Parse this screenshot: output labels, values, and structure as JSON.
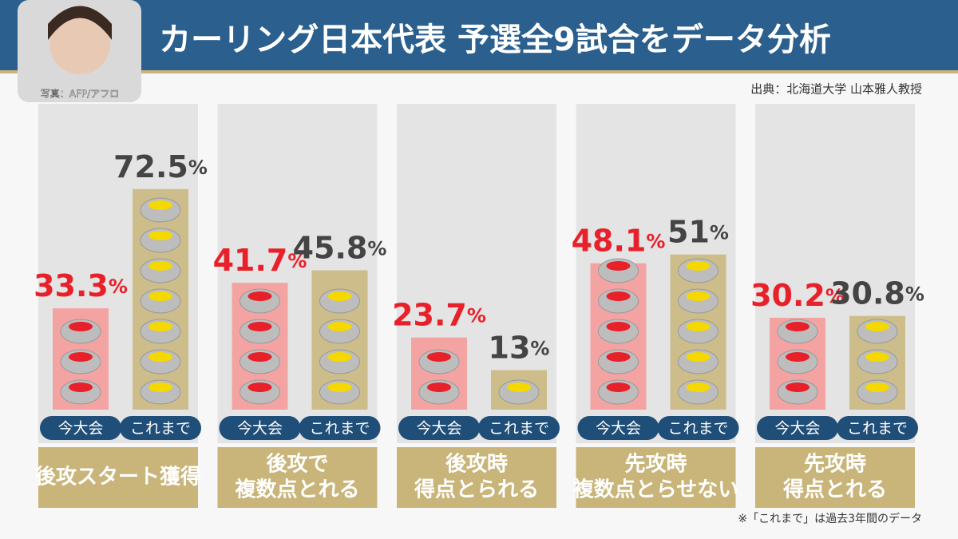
{
  "chart_data": {
    "type": "bar",
    "title": "カーリング日本代表 予選全9試合をデータ分析",
    "source": "出典：北海道大学 山本雅人教授",
    "photo_credit": "写真：AFP/アフロ",
    "note": "※「これまで」は過去3年間のデータ",
    "categories": [
      [
        "後攻スタート獲得"
      ],
      [
        "後攻で",
        "複数点とれる"
      ],
      [
        "後攻時",
        "得点とられる"
      ],
      [
        "先攻時",
        "複数点とらせない"
      ],
      [
        "先攻時",
        "得点とれる"
      ]
    ],
    "series": [
      {
        "name": "今大会",
        "color": "#f4a3a3",
        "label_color": "#e8202a",
        "stone_color": "#e8202a",
        "values": [
          33.3,
          41.7,
          23.7,
          48.1,
          30.2
        ],
        "value_labels": [
          "33.3%",
          "41.7%",
          "23.7%",
          "48.1%",
          "30.2%"
        ]
      },
      {
        "name": "これまで",
        "color": "#cdbd8a",
        "label_color": "#444444",
        "stone_color": "#f5d800",
        "values": [
          72.5,
          45.8,
          13,
          51,
          30.8
        ],
        "value_labels": [
          "72.5%",
          "45.8%",
          "13%",
          "51%",
          "30.8%"
        ]
      }
    ],
    "ylim": [
      0,
      100
    ]
  }
}
